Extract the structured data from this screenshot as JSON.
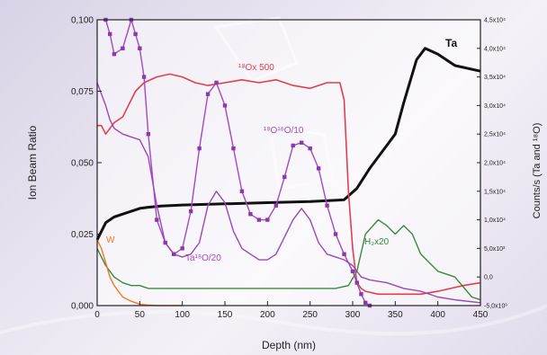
{
  "chart_data": {
    "type": "line",
    "xlabel": "Depth (nm)",
    "ylabel": "Ion Beam Ratio",
    "ylabel_right": "Counts/s (Ta and ¹⁸O)",
    "xlim": [
      0,
      450
    ],
    "ylim": [
      0,
      0.1
    ],
    "ylim_right": [
      -0.5,
      4.5
    ],
    "x_ticks": [
      "0",
      "50",
      "100",
      "150",
      "200",
      "250",
      "300",
      "350",
      "400",
      "450"
    ],
    "y_ticks": [
      "0,000",
      "0,025",
      "0,050",
      "0,075",
      "0,100"
    ],
    "y_ticks_right": [
      "-5,0x10³",
      "0,0",
      "5,0x10³",
      "1,0x10⁴",
      "1,5x10⁴",
      "2,0x10⁴",
      "2,5x10⁴",
      "3,0x10⁴",
      "3,5x10⁴",
      "4,0x10⁴",
      "4,5x10⁴"
    ],
    "annotations": [
      {
        "text": "Ta",
        "color": "#111111"
      },
      {
        "text": "¹⁸Ox 500",
        "color": "#e0404e"
      },
      {
        "text": "¹⁸O¹⁶O/10",
        "color": "#a04cc0"
      },
      {
        "text": "Ta¹⁸O/20",
        "color": "#a04cc0"
      },
      {
        "text": "H₂x20",
        "color": "#2f8a3a"
      },
      {
        "text": "W",
        "color": "#f07820"
      }
    ],
    "series": [
      {
        "color": "#111111",
        "axis": "right",
        "x": [
          0,
          10,
          20,
          30,
          40,
          50,
          60,
          75,
          100,
          150,
          200,
          250,
          290,
          305,
          320,
          340,
          350,
          360,
          375,
          385,
          400,
          420,
          450
        ],
        "y": [
          0.65,
          0.95,
          1.05,
          1.1,
          1.15,
          1.2,
          1.22,
          1.24,
          1.26,
          1.28,
          1.3,
          1.32,
          1.35,
          1.55,
          1.9,
          2.3,
          2.5,
          3.05,
          3.8,
          4.0,
          3.9,
          3.7,
          3.6
        ]
      },
      {
        "color": "#e0404e",
        "axis": "left",
        "x": [
          0,
          5,
          10,
          15,
          20,
          30,
          45,
          55,
          70,
          85,
          100,
          115,
          130,
          150,
          170,
          190,
          210,
          230,
          250,
          270,
          285,
          290,
          295,
          300,
          305,
          310,
          315,
          330,
          350,
          380,
          400,
          430,
          450
        ],
        "y": [
          0.063,
          0.063,
          0.06,
          0.062,
          0.064,
          0.066,
          0.075,
          0.078,
          0.08,
          0.081,
          0.08,
          0.078,
          0.077,
          0.078,
          0.079,
          0.078,
          0.079,
          0.077,
          0.076,
          0.078,
          0.078,
          0.072,
          0.04,
          0.02,
          0.008,
          0.006,
          0.005,
          0.004,
          0.004,
          0.004,
          0.005,
          0.007,
          0.008
        ]
      },
      {
        "color": "#a04cc0",
        "axis": "left",
        "x": [
          10,
          15,
          20,
          30,
          40,
          45,
          50,
          55,
          60,
          70,
          80,
          90,
          100,
          110,
          120,
          130,
          140,
          150,
          160,
          170,
          180,
          190,
          200,
          210,
          220,
          230,
          240,
          250,
          260,
          270,
          280,
          290,
          300,
          305,
          310,
          315,
          320
        ],
        "y": [
          0.1,
          0.095,
          0.088,
          0.09,
          0.1,
          0.095,
          0.09,
          0.08,
          0.06,
          0.03,
          0.022,
          0.018,
          0.02,
          0.033,
          0.055,
          0.074,
          0.078,
          0.07,
          0.055,
          0.04,
          0.032,
          0.03,
          0.03,
          0.035,
          0.045,
          0.056,
          0.057,
          0.055,
          0.048,
          0.035,
          0.025,
          0.018,
          0.012,
          0.008,
          0.004,
          0.001,
          0.0
        ]
      },
      {
        "color": "#9a48b8",
        "axis": "left",
        "x": [
          0,
          10,
          15,
          20,
          30,
          40,
          50,
          60,
          70,
          80,
          90,
          100,
          110,
          120,
          130,
          140,
          150,
          160,
          170,
          180,
          190,
          200,
          210,
          220,
          230,
          240,
          250,
          260,
          270,
          280,
          290,
          300,
          310,
          320,
          340,
          360,
          380,
          400,
          420,
          450
        ],
        "y": [
          0.078,
          0.07,
          0.065,
          0.062,
          0.06,
          0.059,
          0.058,
          0.052,
          0.035,
          0.022,
          0.018,
          0.017,
          0.018,
          0.022,
          0.035,
          0.04,
          0.036,
          0.026,
          0.02,
          0.018,
          0.016,
          0.016,
          0.018,
          0.024,
          0.03,
          0.034,
          0.03,
          0.022,
          0.018,
          0.017,
          0.016,
          0.014,
          0.01,
          0.009,
          0.008,
          0.006,
          0.005,
          0.003,
          0.002,
          0.001
        ]
      },
      {
        "color": "#3a8a3a",
        "axis": "left",
        "x": [
          0,
          5,
          10,
          20,
          30,
          40,
          50,
          60,
          80,
          100,
          150,
          200,
          250,
          280,
          295,
          305,
          315,
          330,
          340,
          350,
          360,
          370,
          380,
          400,
          420,
          440,
          450
        ],
        "y": [
          0.02,
          0.017,
          0.014,
          0.01,
          0.008,
          0.007,
          0.007,
          0.006,
          0.006,
          0.006,
          0.006,
          0.006,
          0.006,
          0.006,
          0.007,
          0.012,
          0.025,
          0.03,
          0.028,
          0.025,
          0.028,
          0.025,
          0.018,
          0.012,
          0.01,
          0.003,
          0.002
        ]
      },
      {
        "color": "#f07820",
        "axis": "left",
        "x": [
          0,
          5,
          10,
          15,
          20,
          30,
          40,
          50,
          60,
          70,
          80,
          100
        ],
        "y": [
          0.023,
          0.02,
          0.015,
          0.01,
          0.007,
          0.003,
          0.0015,
          0.0005,
          0.0002,
          0.0,
          0.0,
          0.0
        ]
      }
    ]
  }
}
